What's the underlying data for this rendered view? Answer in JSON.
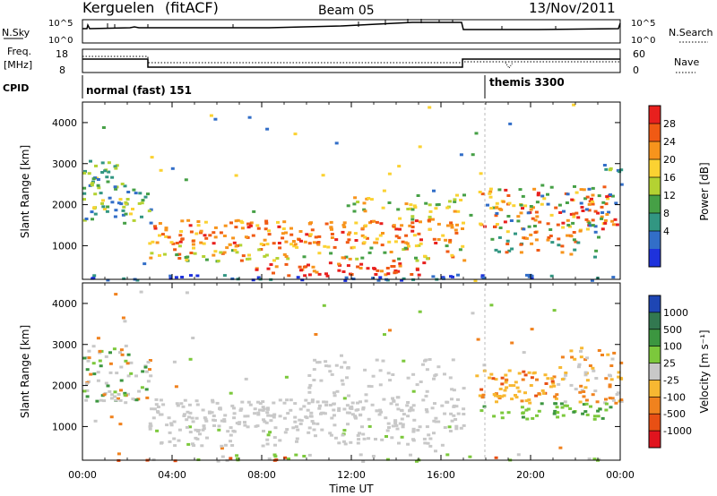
{
  "header": {
    "station": "Kerguelen",
    "mode": "(fitACF)",
    "beam": "Beam 05",
    "date": "13/Nov/2011"
  },
  "top_panels": {
    "nsky_label": "N.Sky",
    "nsearch_label": "N.Search",
    "nsky_ticks": [
      "10^5",
      "10^0"
    ],
    "nsearch_ticks": [
      "10^5",
      "10^0"
    ],
    "freq_label_1": "Freq.",
    "freq_label_2": "[MHz]",
    "freq_ticks": [
      "18",
      "8"
    ],
    "nave_label": "Nave",
    "nave_ticks": [
      "60",
      "0"
    ],
    "cpid_label": "CPID",
    "cpid_segments": [
      {
        "name": "normal (fast) 151",
        "start_hour": 0,
        "end_hour": 18.0
      },
      {
        "name": "themis 3300",
        "start_hour": 18.0,
        "end_hour": 24
      }
    ]
  },
  "chart_data": [
    {
      "type": "line",
      "title": "N.Sky / N.Search",
      "x": [
        0,
        0.5,
        1,
        3,
        6,
        9,
        12,
        13,
        14,
        15,
        16,
        17,
        17.1,
        20,
        23.9,
        24
      ],
      "series": [
        {
          "name": "N.Sky",
          "values": [
            4,
            5,
            4.5,
            4.5,
            4.5,
            4.5,
            4.6,
            4.8,
            5,
            5,
            5,
            5,
            4.2,
            4.2,
            4.3,
            5
          ]
        }
      ]
    },
    {
      "type": "line",
      "title": "Freq / Nave",
      "x": [
        0,
        2.9,
        3.0,
        17.0,
        17.1,
        24
      ],
      "series": [
        {
          "name": "Freq",
          "values": [
            12.5,
            12.5,
            11.6,
            11.6,
            12.9,
            12.9
          ]
        },
        {
          "name": "Nave",
          "values": [
            18,
            18,
            18,
            18,
            20,
            20
          ]
        }
      ]
    },
    {
      "type": "heatmap",
      "title": "Power",
      "xlabel": "",
      "ylabel": "Slant Range [km]",
      "colorbar_label": "Power [dB]",
      "colorbar_ticks": [
        "28",
        "24",
        "20",
        "16",
        "12",
        "8",
        "4"
      ],
      "colorbar_colors": [
        "#e8201e",
        "#f05a14",
        "#f7941c",
        "#fbd232",
        "#b4d232",
        "#46a046",
        "#329682",
        "#326ec8",
        "#1e32dc"
      ],
      "x_range_hours": [
        0,
        24
      ],
      "yticks": [
        "4000",
        "3000",
        "2000",
        "1000"
      ],
      "ylim": [
        180,
        4500
      ],
      "echo_bands": [
        {
          "t0": 0.1,
          "t1": 3.0,
          "r0": 1700,
          "r1": 2700,
          "level": "medium"
        },
        {
          "t0": 3.0,
          "t1": 17.0,
          "r0": 1100,
          "r1": 1600,
          "level": "high"
        },
        {
          "t0": 3.0,
          "t1": 17.0,
          "r0": 700,
          "r1": 1000,
          "level": "medium"
        },
        {
          "t0": 8.0,
          "t1": 15.0,
          "r0": 300,
          "r1": 600,
          "level": "high"
        },
        {
          "t0": 17.7,
          "t1": 23.8,
          "r0": 1400,
          "r1": 2400,
          "level": "high"
        },
        {
          "t0": 18.0,
          "t1": 23.0,
          "r0": 800,
          "r1": 1300,
          "level": "medium"
        }
      ]
    },
    {
      "type": "heatmap",
      "title": "Velocity",
      "xlabel": "Time UT",
      "ylabel": "Slant Range [km]",
      "colorbar_label": "Velocity [m s⁻¹]",
      "colorbar_ticks": [
        "1000",
        "500",
        "100",
        "25",
        "-25",
        "-100",
        "-500",
        "-1000"
      ],
      "colorbar_colors": [
        "#1e46b4",
        "#327850",
        "#3c9640",
        "#7cc83c",
        "#c8c8c8",
        "#f7b832",
        "#f0821e",
        "#e85014",
        "#e0141e"
      ],
      "x_range_hours": [
        0,
        24
      ],
      "xticks": [
        "00:00",
        "04:00",
        "08:00",
        "12:00",
        "16:00",
        "20:00",
        "00:00"
      ],
      "yticks": [
        "4000",
        "3000",
        "2000",
        "1000"
      ],
      "ylim": [
        180,
        4500
      ]
    }
  ]
}
